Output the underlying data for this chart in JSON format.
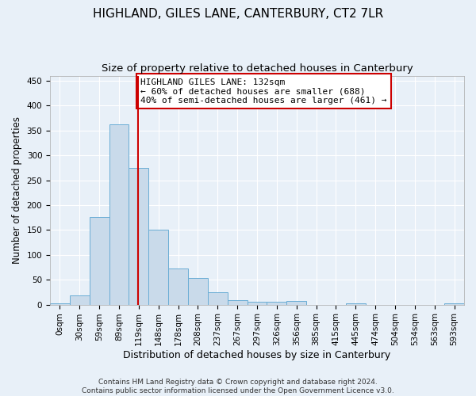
{
  "title": "HIGHLAND, GILES LANE, CANTERBURY, CT2 7LR",
  "subtitle": "Size of property relative to detached houses in Canterbury",
  "xlabel": "Distribution of detached houses by size in Canterbury",
  "ylabel": "Number of detached properties",
  "categories": [
    "0sqm",
    "30sqm",
    "59sqm",
    "89sqm",
    "119sqm",
    "148sqm",
    "178sqm",
    "208sqm",
    "237sqm",
    "267sqm",
    "297sqm",
    "326sqm",
    "356sqm",
    "385sqm",
    "415sqm",
    "445sqm",
    "474sqm",
    "504sqm",
    "534sqm",
    "563sqm",
    "593sqm"
  ],
  "values": [
    2,
    18,
    176,
    363,
    274,
    150,
    72,
    54,
    25,
    9,
    6,
    5,
    7,
    0,
    0,
    3,
    0,
    0,
    0,
    0,
    2
  ],
  "bar_color": "#c9daea",
  "bar_edge_color": "#6aadd5",
  "vline_x_bin": 4,
  "vline_color": "#cc0000",
  "annotation_text": "HIGHLAND GILES LANE: 132sqm\n← 60% of detached houses are smaller (688)\n40% of semi-detached houses are larger (461) →",
  "annotation_box_color": "white",
  "annotation_box_edge_color": "#cc0000",
  "ylim": [
    0,
    460
  ],
  "footnote": "Contains HM Land Registry data © Crown copyright and database right 2024.\nContains public sector information licensed under the Open Government Licence v3.0.",
  "title_fontsize": 11,
  "subtitle_fontsize": 9.5,
  "xlabel_fontsize": 9,
  "ylabel_fontsize": 8.5,
  "tick_fontsize": 7.5,
  "annotation_fontsize": 8,
  "footnote_fontsize": 6.5,
  "background_color": "#e8f0f8",
  "grid_color": "#ffffff"
}
